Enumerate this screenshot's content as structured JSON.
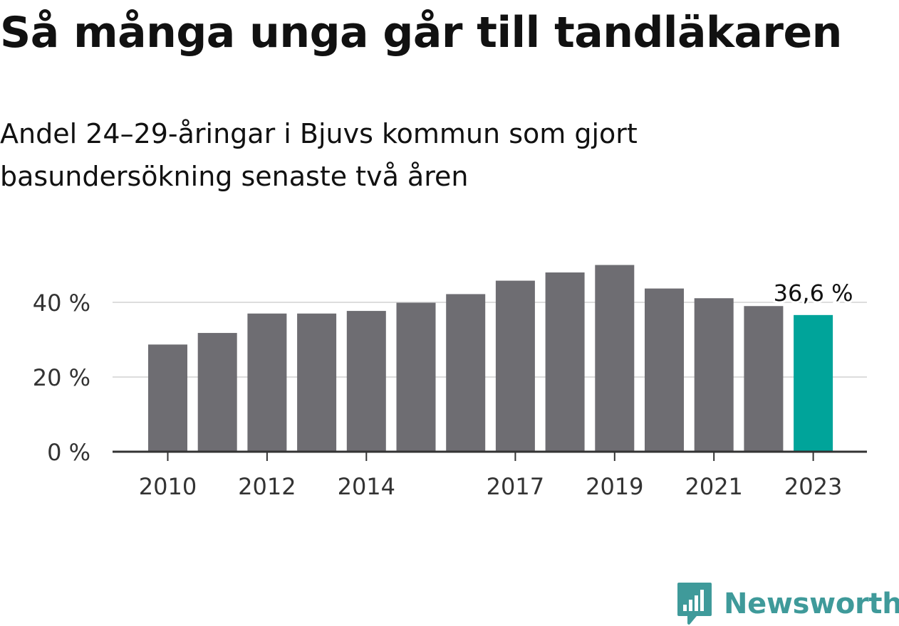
{
  "header": {
    "title": "Så många unga går till tandläkaren",
    "subtitle": "Andel 24–29-åringar i Bjuvs kommun som gjort basundersökning senaste två åren"
  },
  "chart_data": {
    "type": "bar",
    "categories": [
      "2010",
      "2011",
      "2012",
      "2013",
      "2014",
      "2015",
      "2016",
      "2017",
      "2018",
      "2019",
      "2020",
      "2021",
      "2022",
      "2023"
    ],
    "tick_labels": [
      "2010",
      "",
      "2012",
      "",
      "2014",
      "",
      "",
      "2017",
      "",
      "2019",
      "",
      "2021",
      "",
      "2023"
    ],
    "values": [
      28.7,
      31.8,
      37.0,
      37.0,
      37.7,
      39.9,
      42.2,
      45.8,
      48.0,
      50.0,
      43.7,
      41.1,
      39.0,
      36.6
    ],
    "highlight_index": 13,
    "highlight_label": "36,6 %",
    "ylim": [
      0,
      50
    ],
    "yticks": [
      0,
      20,
      40
    ],
    "ytick_labels": [
      "0 %",
      "20 %",
      "40 %"
    ],
    "xlabel": "",
    "ylabel": "",
    "grid": true,
    "colors": {
      "bar": "#6e6d72",
      "highlight": "#00a49a",
      "grid": "#dddddd",
      "axis": "#333333",
      "tick_text": "#333333",
      "label_text": "#111111"
    }
  },
  "brand": {
    "name": "Newsworthy",
    "icon": "bar-chart-badge-icon",
    "color": "#3f9a9a"
  }
}
